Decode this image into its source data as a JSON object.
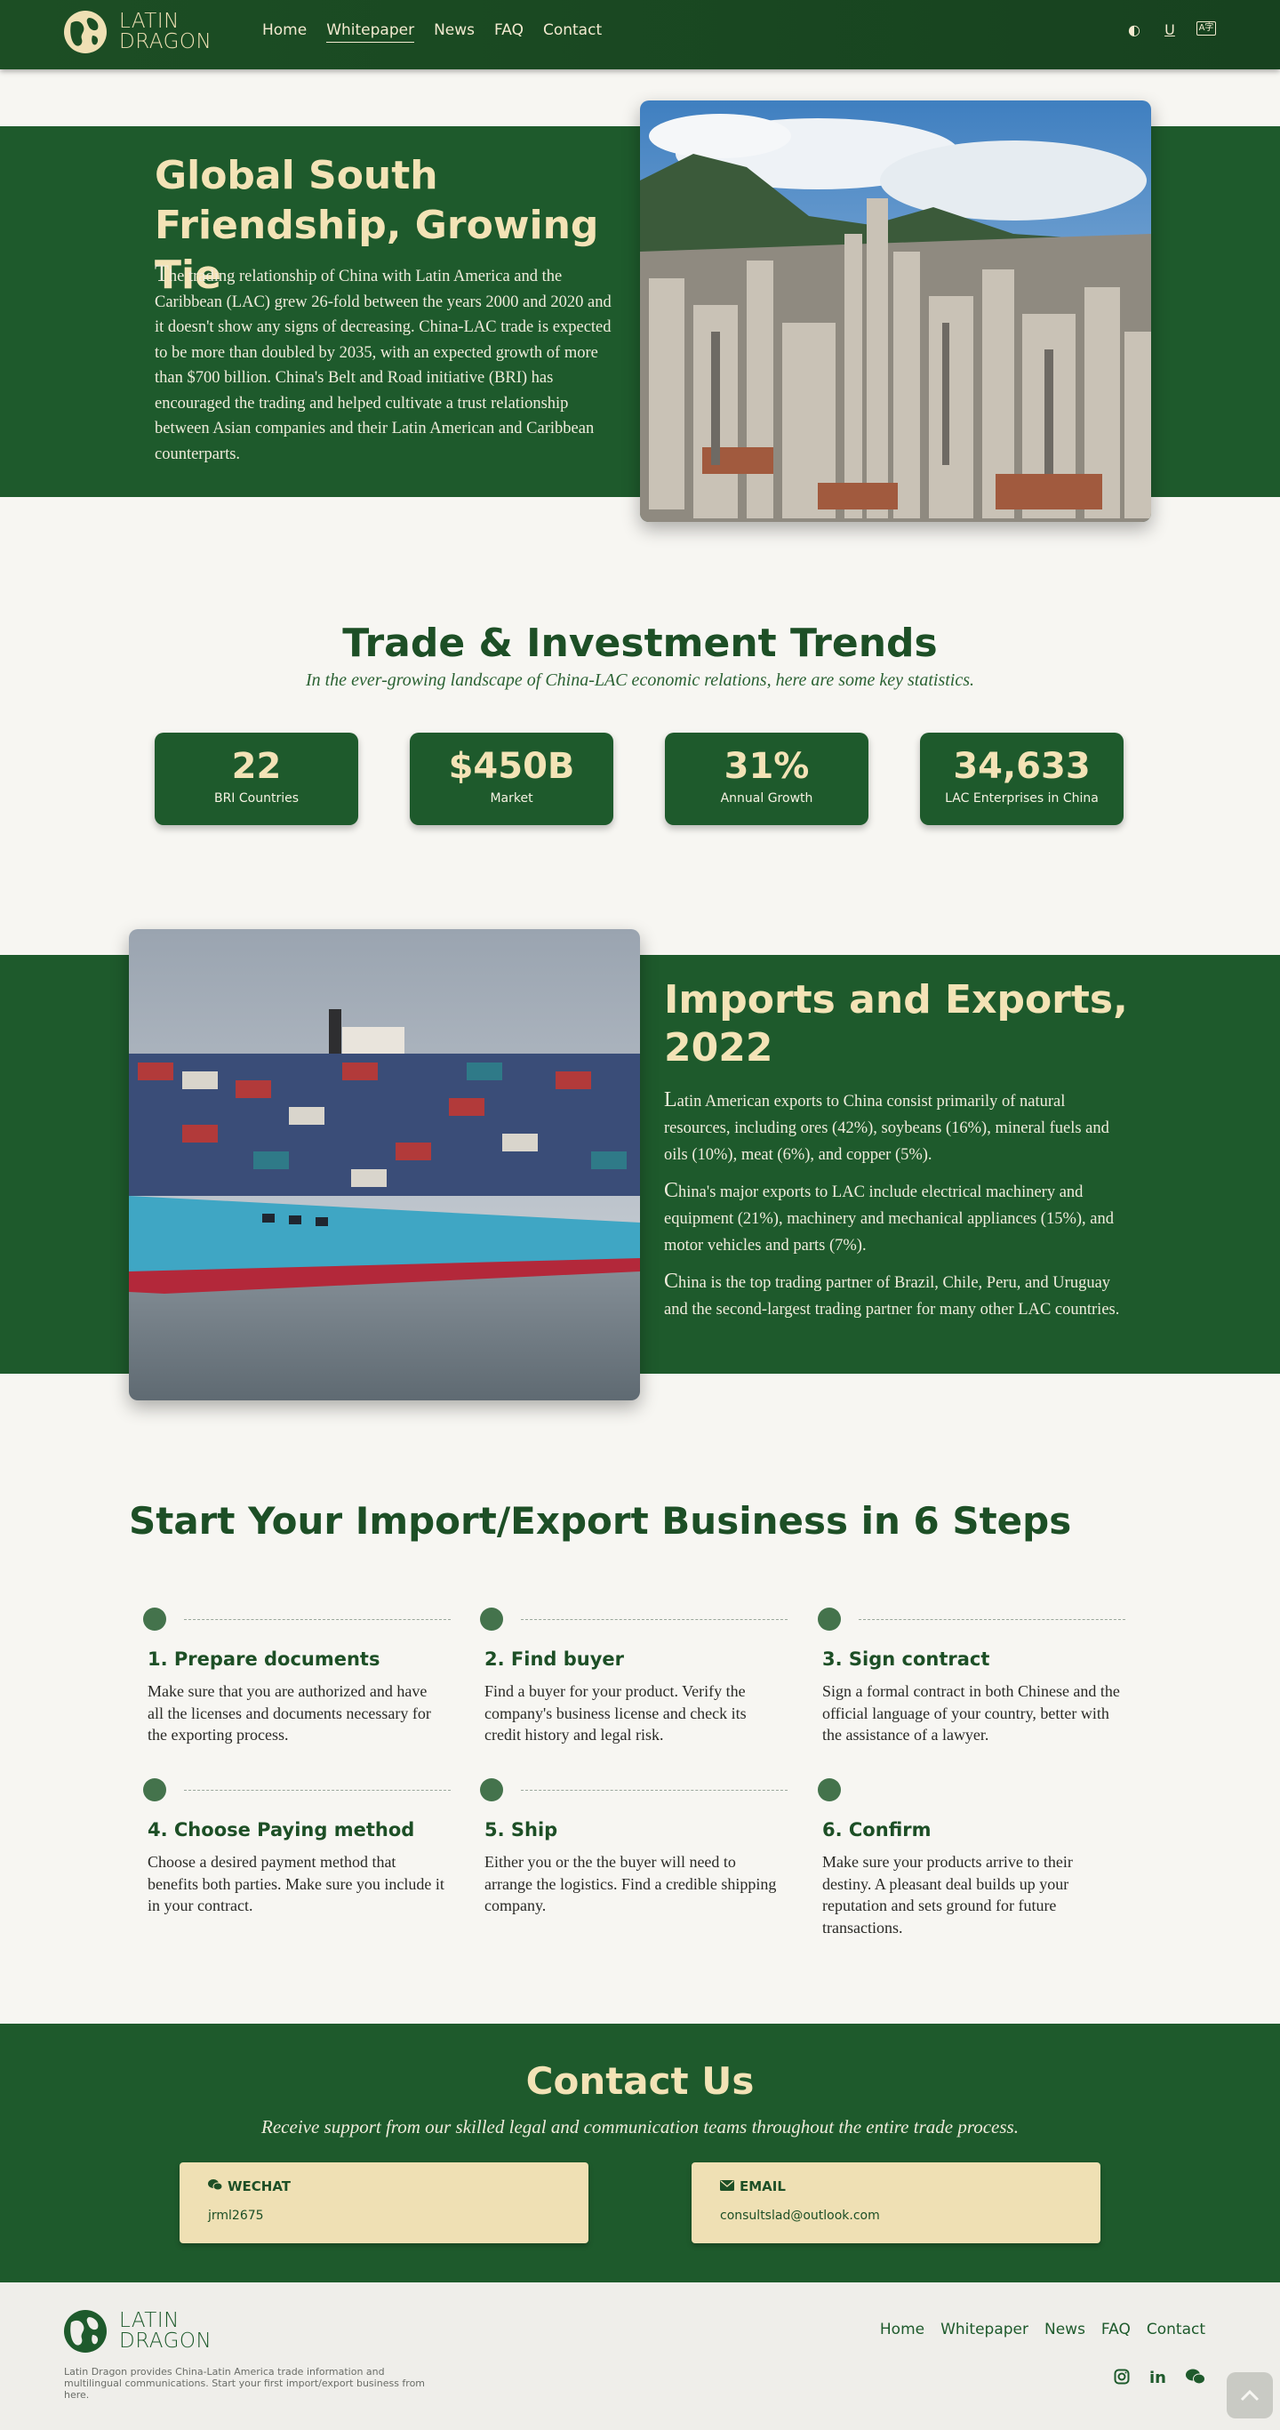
{
  "brand": {
    "line1": "LATIN",
    "line2": "DRAGON"
  },
  "nav": {
    "links": [
      "Home",
      "Whitepaper",
      "News",
      "FAQ",
      "Contact"
    ],
    "icons": [
      "contrast-icon",
      "underline-icon",
      "translate-icon"
    ]
  },
  "hero": {
    "title": "Global South Friendship, Growing Tie",
    "text": "The trading relationship of China with Latin America and the Caribbean (LAC) grew 26-fold between the years 2000 and 2020 and it doesn't show any signs of decreasing. China-LAC trade is expected to be more than doubled by 2035, with an expected growth of more than $700 billion. China's Belt and Road initiative (BRI) has encouraged the trading and helped cultivate a trust relationship between Asian companies and their Latin American and Caribbean counterparts."
  },
  "trends": {
    "title": "Trade & Investment Trends",
    "subtitle": "In the ever-growing landscape of China-LAC economic relations, here are some key statistics.",
    "stats": [
      {
        "value": "22",
        "label": "BRI Countries"
      },
      {
        "value": "$450B",
        "label": "Market"
      },
      {
        "value": "31%",
        "label": "Annual Growth"
      },
      {
        "value": "34,633",
        "label": "LAC Enterprises in China"
      }
    ]
  },
  "imports": {
    "title": "Imports and Exports, 2022",
    "paragraphs": [
      "Latin American exports to China consist primarily of natural resources, including ores (42%), soybeans (16%), mineral fuels and oils (10%), meat (6%), and copper (5%).",
      "China's major exports to LAC include electrical machinery and equipment (21%), machinery and mechanical appliances (15%), and motor vehicles and parts (7%).",
      "China is the top trading partner of Brazil, Chile, Peru, and Uruguay and the second-largest trading partner for many other LAC countries."
    ]
  },
  "steps": {
    "title": "Start Your Import/Export Business in 6 Steps",
    "items": [
      {
        "title": "1. Prepare documents",
        "text": "Make sure that you are authorized and have all the licenses and documents necessary for the exporting process."
      },
      {
        "title": "2. Find buyer",
        "text": "Find a buyer for your product. Verify the company's business license and check its credit history and legal risk."
      },
      {
        "title": "3. Sign contract",
        "text": "Sign a formal contract in both Chinese and the official language of your country, better with the assistance of a lawyer."
      },
      {
        "title": "4. Choose Paying method",
        "text": "Choose a desired payment method that benefits both parties. Make sure you include it in your contract."
      },
      {
        "title": "5. Ship",
        "text": "Either you or the the buyer will need to arrange the logistics. Find a credible shipping company."
      },
      {
        "title": "6. Confirm",
        "text": "Make sure your products arrive to their destiny. A pleasant deal builds up your reputation and sets ground for future transactions."
      }
    ]
  },
  "contact": {
    "title": "Contact Us",
    "subtitle": "Receive support from our skilled legal and communication teams throughout the entire trade process.",
    "wechat": {
      "label": "WECHAT",
      "value": "jrml2675",
      "icon": "wechat-icon"
    },
    "email": {
      "label": "EMAIL",
      "value": "consultslad@outlook.com",
      "icon": "envelope-icon"
    }
  },
  "footer": {
    "description": "Latin Dragon provides China-Latin America trade information and multilingual communications. Start your first import/export business from here.",
    "links": [
      "Home",
      "Whitepaper",
      "News",
      "FAQ",
      "Contact"
    ],
    "social": [
      "instagram-icon",
      "linkedin-icon",
      "wechat-icon"
    ]
  },
  "colors": {
    "primary_green": "#1e5a2c",
    "cream": "#efe0b4",
    "background": "#f7f6f2"
  }
}
